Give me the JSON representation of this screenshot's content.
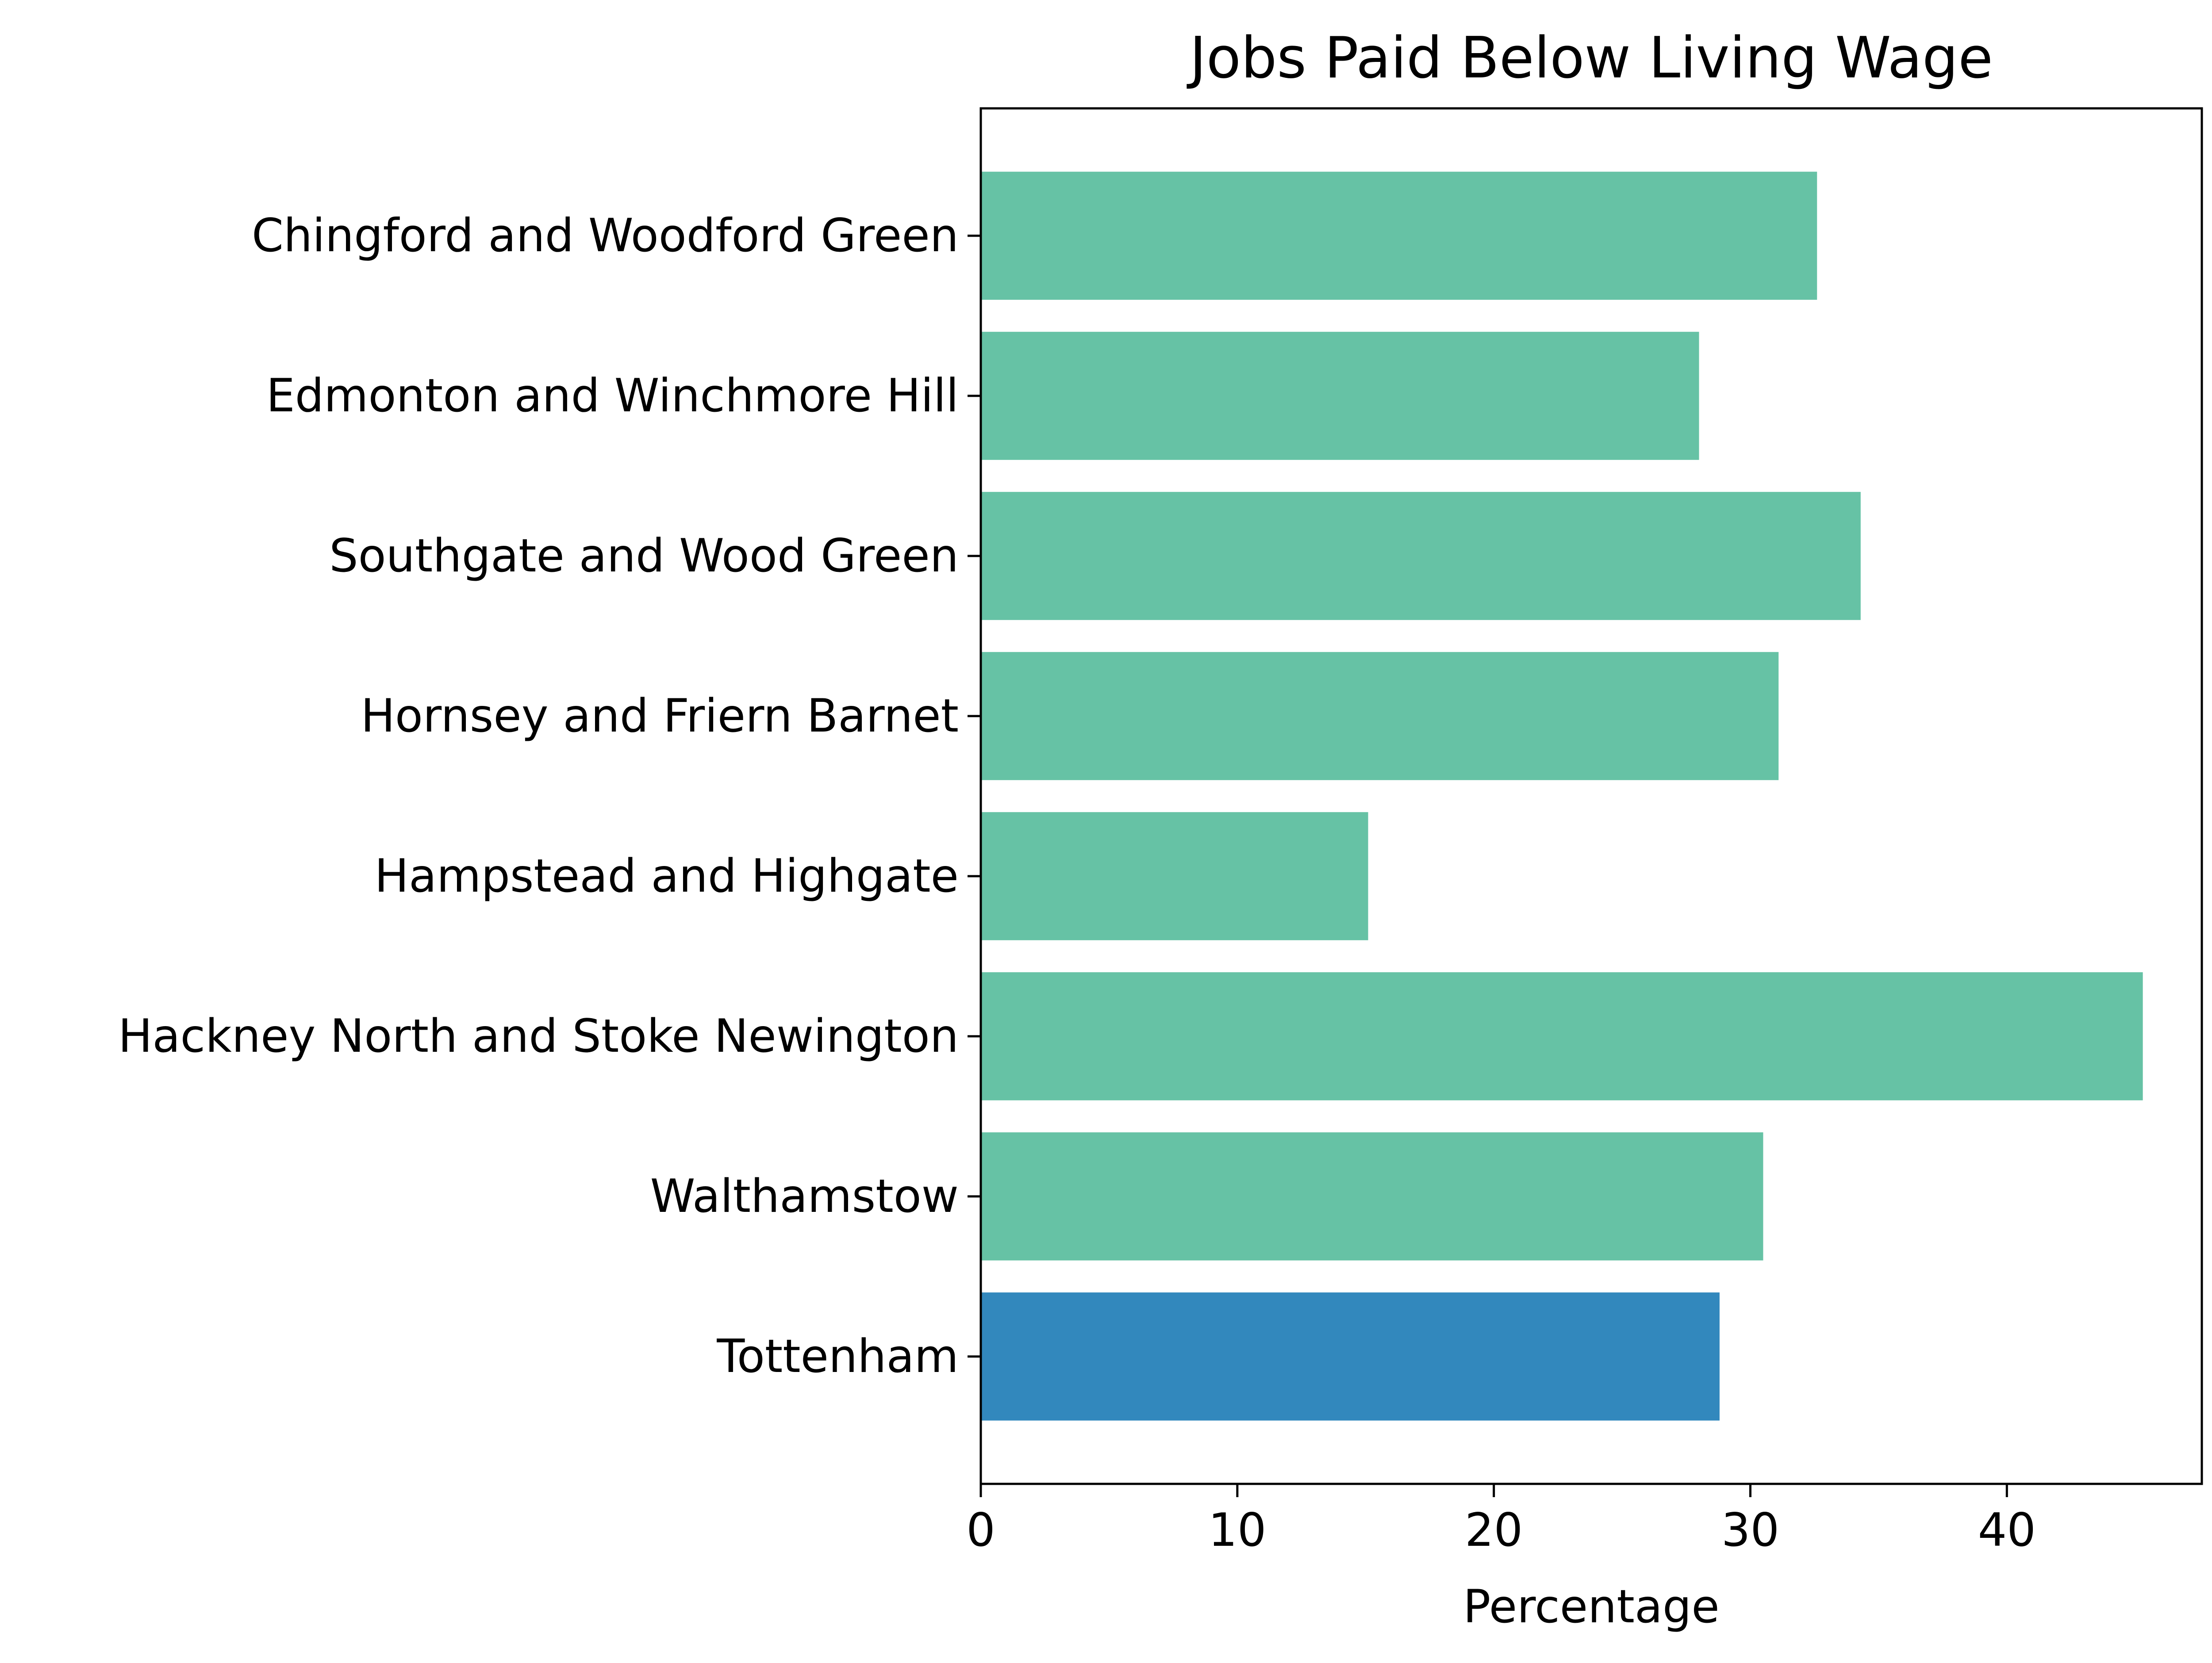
{
  "chart_data": {
    "type": "bar",
    "orientation": "horizontal",
    "title": "Jobs Paid Below Living Wage",
    "xlabel": "Percentage",
    "ylabel": "",
    "categories": [
      "Chingford and Woodford Green",
      "Edmonton and Winchmore Hill",
      "Southgate and Wood Green",
      "Hornsey and Friern Barnet",
      "Hampstead and Highgate",
      "Hackney North and Stoke Newington",
      "Walthamstow",
      "Tottenham"
    ],
    "values": [
      32.6,
      28.0,
      34.3,
      31.1,
      15.1,
      45.3,
      30.5,
      28.8
    ],
    "highlight": "Tottenham",
    "xlim": [
      0,
      47.6
    ],
    "xticks": [
      0,
      10,
      20,
      30,
      40
    ],
    "grid": false,
    "legend": "none",
    "colors": {
      "bar": "#66c2a5",
      "highlight": "#3288bd"
    }
  }
}
